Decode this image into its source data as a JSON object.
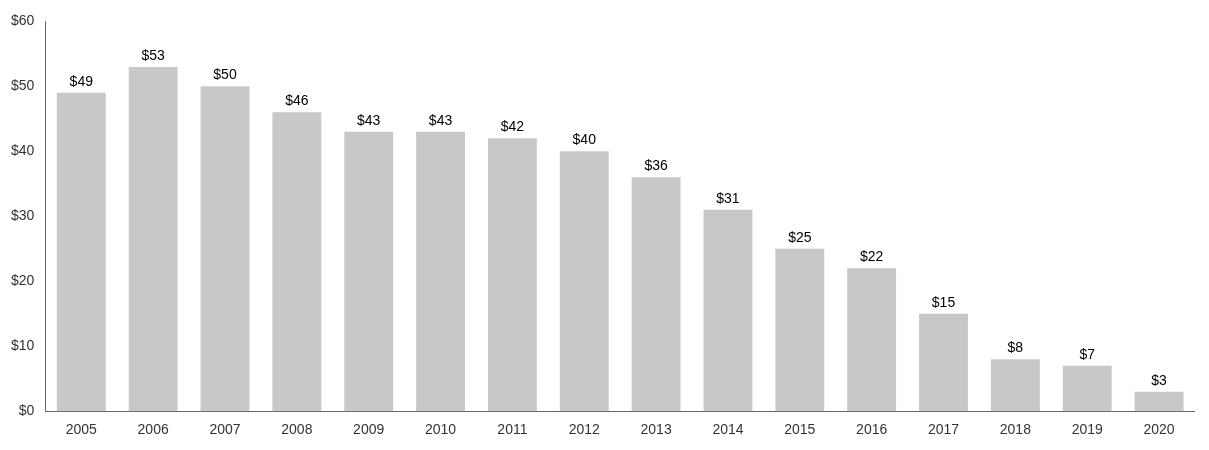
{
  "chart_data": {
    "type": "bar",
    "categories": [
      "2005",
      "2006",
      "2007",
      "2008",
      "2009",
      "2010",
      "2011",
      "2012",
      "2013",
      "2014",
      "2015",
      "2016",
      "2017",
      "2018",
      "2019",
      "2020"
    ],
    "values": [
      49,
      53,
      50,
      46,
      43,
      43,
      42,
      40,
      36,
      31,
      25,
      22,
      15,
      8,
      7,
      3
    ],
    "value_labels": [
      "$49",
      "$53",
      "$50",
      "$46",
      "$43",
      "$43",
      "$42",
      "$40",
      "$36",
      "$31",
      "$25",
      "$22",
      "$15",
      "$8",
      "$7",
      "$3"
    ],
    "data_labels": true,
    "color": "#c8c8c8",
    "ylim": [
      0,
      60
    ],
    "yticks": [
      {
        "value": 0,
        "label": "$0"
      },
      {
        "value": 10,
        "label": "$10"
      },
      {
        "value": 20,
        "label": "$20"
      },
      {
        "value": 30,
        "label": "$30"
      },
      {
        "value": 40,
        "label": "$40"
      },
      {
        "value": 50,
        "label": "$50"
      },
      {
        "value": 60,
        "label": "$60"
      }
    ],
    "grid": false
  }
}
